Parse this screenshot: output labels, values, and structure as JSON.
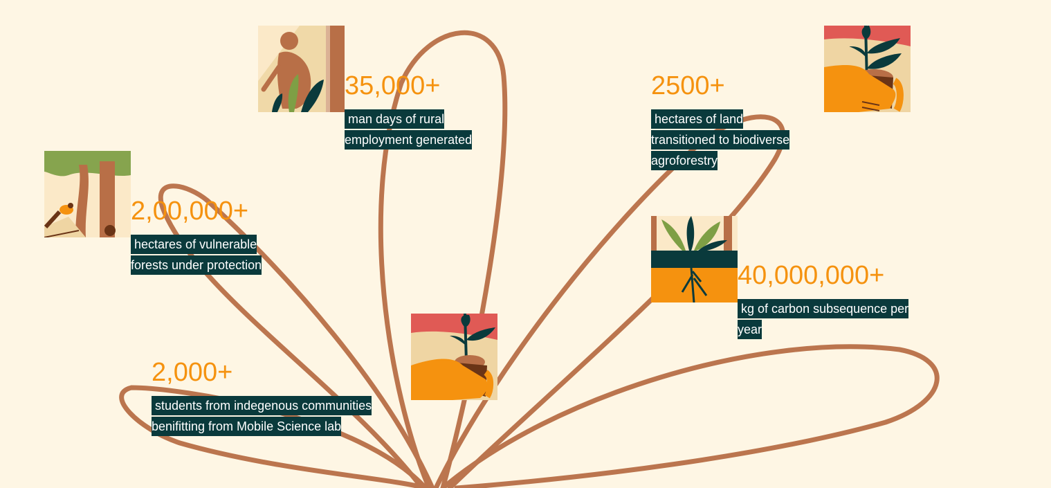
{
  "colors": {
    "background": "#fef6e4",
    "accent": "#f5920f",
    "label_bg": "#0a3a3c",
    "stem": "#b86f47"
  },
  "stats": [
    {
      "number": "35,000+",
      "description": "man days of rural employment generated",
      "icon": "person-planting-icon"
    },
    {
      "number": "2500+",
      "description": "hectares of land transitioned to biodiverse agroforestry",
      "icon": "hand-holding-sapling-icon"
    },
    {
      "number": "2,00,000+",
      "description": "hectares of vulnerable forests under protection",
      "icon": "bird-in-forest-icon"
    },
    {
      "number": "40,000,000+",
      "description": "kg of carbon subsequence per year",
      "icon": "plant-roots-icon"
    },
    {
      "number": "2,000+",
      "description": "students from indegenous communities benifitting from Mobile Science lab",
      "icon": "hand-holding-sapling-icon"
    }
  ]
}
